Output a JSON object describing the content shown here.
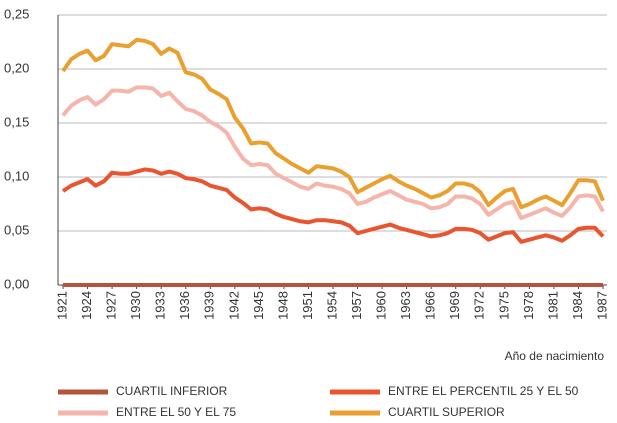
{
  "chart_data": {
    "type": "line",
    "x_label": "Año de nacimiento",
    "x": [
      1921,
      1922,
      1923,
      1924,
      1925,
      1926,
      1927,
      1928,
      1929,
      1930,
      1931,
      1932,
      1933,
      1934,
      1935,
      1936,
      1937,
      1938,
      1939,
      1940,
      1941,
      1942,
      1943,
      1944,
      1945,
      1946,
      1947,
      1948,
      1949,
      1950,
      1951,
      1952,
      1953,
      1954,
      1955,
      1956,
      1957,
      1958,
      1959,
      1960,
      1961,
      1962,
      1963,
      1964,
      1965,
      1966,
      1967,
      1968,
      1969,
      1970,
      1971,
      1972,
      1973,
      1974,
      1975,
      1976,
      1977,
      1978,
      1979,
      1980,
      1981,
      1982,
      1983,
      1984,
      1985,
      1986,
      1987
    ],
    "xlim": [
      1921,
      1987
    ],
    "xticks": [
      1921,
      1924,
      1927,
      1930,
      1933,
      1936,
      1939,
      1942,
      1945,
      1948,
      1951,
      1954,
      1957,
      1960,
      1963,
      1966,
      1969,
      1972,
      1975,
      1978,
      1981,
      1984,
      1987
    ],
    "ylim": [
      0,
      0.25
    ],
    "yticks": [
      {
        "value": 0,
        "label": "0,00"
      },
      {
        "value": 0.05,
        "label": "0,05"
      },
      {
        "value": 0.1,
        "label": "0,10"
      },
      {
        "value": 0.15,
        "label": "0,15"
      },
      {
        "value": 0.2,
        "label": "0,20"
      },
      {
        "value": 0.25,
        "label": "0,25"
      }
    ],
    "grid": true,
    "legend": "bottom",
    "series": [
      {
        "name": "CUARTIL INFERIOR",
        "color": "#b5533c",
        "values": [
          0,
          0,
          0,
          0,
          0,
          0,
          0,
          0,
          0,
          0,
          0,
          0,
          0,
          0,
          0,
          0,
          0,
          0,
          0,
          0,
          0,
          0,
          0,
          0,
          0,
          0,
          0,
          0,
          0,
          0,
          0,
          0,
          0,
          0,
          0,
          0,
          0,
          0,
          0,
          0,
          0,
          0,
          0,
          0,
          0,
          0,
          0,
          0,
          0,
          0,
          0,
          0,
          0,
          0,
          0,
          0,
          0,
          0,
          0,
          0,
          0,
          0,
          0,
          0,
          0,
          0,
          0
        ]
      },
      {
        "name": "ENTRE EL PERCENTIL 25 Y EL 50",
        "color": "#e8552f",
        "values": [
          0.087,
          0.092,
          0.095,
          0.098,
          0.092,
          0.096,
          0.104,
          0.103,
          0.103,
          0.105,
          0.107,
          0.106,
          0.103,
          0.105,
          0.103,
          0.099,
          0.098,
          0.096,
          0.092,
          0.09,
          0.088,
          0.081,
          0.076,
          0.07,
          0.071,
          0.07,
          0.066,
          0.063,
          0.061,
          0.059,
          0.058,
          0.06,
          0.06,
          0.059,
          0.058,
          0.055,
          0.048,
          0.05,
          0.052,
          0.054,
          0.056,
          0.053,
          0.051,
          0.049,
          0.047,
          0.045,
          0.046,
          0.048,
          0.052,
          0.052,
          0.051,
          0.048,
          0.042,
          0.045,
          0.048,
          0.049,
          0.04,
          0.042,
          0.044,
          0.046,
          0.044,
          0.041,
          0.046,
          0.052,
          0.053,
          0.053,
          0.045
        ]
      },
      {
        "name": "ENTRE EL 50 Y EL 75",
        "color": "#f6b5ab",
        "values": [
          0.157,
          0.166,
          0.171,
          0.174,
          0.167,
          0.172,
          0.18,
          0.18,
          0.179,
          0.183,
          0.183,
          0.182,
          0.175,
          0.178,
          0.17,
          0.163,
          0.161,
          0.157,
          0.151,
          0.147,
          0.141,
          0.128,
          0.117,
          0.111,
          0.112,
          0.111,
          0.103,
          0.099,
          0.095,
          0.091,
          0.089,
          0.094,
          0.092,
          0.091,
          0.089,
          0.085,
          0.075,
          0.077,
          0.081,
          0.084,
          0.087,
          0.083,
          0.079,
          0.077,
          0.075,
          0.071,
          0.072,
          0.075,
          0.082,
          0.082,
          0.08,
          0.075,
          0.065,
          0.07,
          0.075,
          0.077,
          0.062,
          0.065,
          0.068,
          0.071,
          0.067,
          0.064,
          0.072,
          0.082,
          0.083,
          0.082,
          0.068
        ]
      },
      {
        "name": "CUARTIL SUPERIOR",
        "color": "#e9a02f",
        "values": [
          0.198,
          0.209,
          0.214,
          0.217,
          0.208,
          0.212,
          0.223,
          0.222,
          0.221,
          0.227,
          0.226,
          0.223,
          0.214,
          0.219,
          0.215,
          0.197,
          0.195,
          0.191,
          0.181,
          0.177,
          0.172,
          0.155,
          0.145,
          0.131,
          0.132,
          0.131,
          0.122,
          0.117,
          0.112,
          0.108,
          0.104,
          0.11,
          0.109,
          0.108,
          0.105,
          0.1,
          0.086,
          0.09,
          0.094,
          0.098,
          0.101,
          0.096,
          0.092,
          0.089,
          0.085,
          0.081,
          0.083,
          0.087,
          0.094,
          0.094,
          0.092,
          0.086,
          0.074,
          0.081,
          0.087,
          0.089,
          0.072,
          0.075,
          0.079,
          0.082,
          0.078,
          0.074,
          0.085,
          0.097,
          0.097,
          0.096,
          0.078
        ]
      }
    ]
  }
}
